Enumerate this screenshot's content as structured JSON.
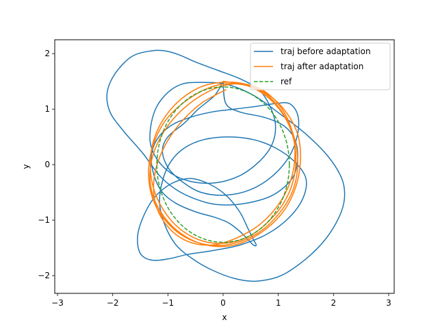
{
  "chart_data": {
    "type": "line",
    "xlabel": "x",
    "ylabel": "y",
    "xlim": [
      -3.05,
      3.1
    ],
    "ylim": [
      -2.32,
      2.25
    ],
    "xticks": [
      -3,
      -2,
      -1,
      0,
      1,
      2,
      3
    ],
    "yticks": [
      -2,
      -1,
      0,
      1,
      2
    ],
    "xtick_labels": [
      "−3",
      "−2",
      "−1",
      "0",
      "1",
      "2",
      "3"
    ],
    "ytick_labels": [
      "−2",
      "−1",
      "0",
      "1",
      "2"
    ],
    "grid": false,
    "legend": {
      "placement": "top-right",
      "entries": [
        {
          "label": "traj before adaptation",
          "color": "#1f77b4",
          "style": "solid"
        },
        {
          "label": "traj after adaptation",
          "color": "#ff7f0e",
          "style": "solid"
        },
        {
          "label": "ref",
          "color": "#2ca02c",
          "style": "dashed"
        }
      ]
    },
    "series": [
      {
        "name": "traj before adaptation",
        "color": "#1f77b4",
        "style": "solid",
        "x": [
          0.0,
          0.05,
          0.3,
          0.75,
          1.1,
          1.3,
          1.35,
          1.25,
          0.9,
          0.4,
          -0.1,
          -0.5,
          -0.85,
          -1.15,
          -1.45,
          -1.8,
          -2.05,
          -2.1,
          -1.95,
          -1.65,
          -1.3,
          -1.05,
          -0.8,
          -0.5,
          -0.1,
          0.3,
          0.65,
          0.85,
          0.95,
          0.88,
          0.65,
          0.3,
          -0.15,
          -0.6,
          -0.95,
          -1.2,
          -1.32,
          -1.3,
          -1.2,
          -1.0,
          -0.75,
          -0.45,
          0.05,
          0.55,
          1.05,
          1.5,
          1.9,
          2.15,
          2.2,
          2.1,
          1.85,
          1.5,
          1.05,
          0.6,
          0.2,
          -0.2,
          -0.55,
          -0.85,
          -1.05,
          -1.15,
          -1.1,
          -0.95,
          -0.7,
          -0.35,
          0.1,
          0.55,
          0.95,
          1.3,
          1.5,
          1.45,
          1.2,
          0.8,
          0.3,
          -0.2,
          -0.65,
          -1.0,
          -1.3,
          -1.5,
          -1.55,
          -1.45,
          -1.25,
          -0.95,
          -0.6,
          -0.25,
          0.05,
          0.3,
          0.45,
          0.55,
          0.6,
          0.55,
          0.45,
          0.3,
          0.1,
          -0.15,
          -0.5,
          -0.85,
          -1.1,
          -1.25,
          -1.3,
          -1.2,
          -0.95,
          -0.6,
          -0.2,
          0.2,
          0.6,
          0.95,
          1.2,
          1.35,
          1.35,
          1.2,
          0.9,
          0.5,
          0.05,
          -0.4,
          -0.75,
          -1.0,
          -1.1,
          -1.0,
          -0.7,
          -0.45,
          -0.15,
          0.0
        ],
        "y": [
          1.5,
          1.1,
          0.95,
          0.85,
          0.7,
          0.45,
          0.1,
          -0.25,
          -0.55,
          -0.7,
          -0.72,
          -0.62,
          -0.45,
          -0.2,
          0.2,
          0.6,
          0.95,
          1.3,
          1.65,
          1.95,
          2.05,
          2.05,
          1.98,
          1.85,
          1.7,
          1.55,
          1.35,
          1.05,
          0.7,
          0.35,
          0.05,
          -0.2,
          -0.33,
          -0.3,
          -0.15,
          0.1,
          0.4,
          0.75,
          1.05,
          1.3,
          1.45,
          1.48,
          1.45,
          1.25,
          0.9,
          0.55,
          0.15,
          -0.25,
          -0.6,
          -0.95,
          -1.35,
          -1.7,
          -2.0,
          -2.1,
          -2.05,
          -1.9,
          -1.7,
          -1.45,
          -1.1,
          -0.7,
          -0.3,
          0.05,
          0.3,
          0.45,
          0.5,
          0.45,
          0.3,
          0.05,
          -0.25,
          -0.6,
          -0.95,
          -1.25,
          -1.45,
          -1.55,
          -1.62,
          -1.7,
          -1.72,
          -1.6,
          -1.3,
          -0.95,
          -0.6,
          -0.35,
          -0.25,
          -0.35,
          -0.55,
          -0.85,
          -1.15,
          -1.35,
          -1.45,
          -1.45,
          -1.35,
          -1.2,
          -1.05,
          -0.95,
          -0.85,
          -0.7,
          -0.5,
          -0.2,
          0.15,
          0.45,
          0.7,
          0.85,
          0.95,
          1.0,
          1.05,
          1.1,
          1.1,
          0.9,
          0.55,
          0.15,
          -0.2,
          -0.45,
          -0.55,
          -0.5,
          -0.3,
          -0.05,
          0.25,
          0.5,
          0.75,
          1.0,
          1.25,
          1.5
        ]
      },
      {
        "name": "traj after adaptation",
        "color": "#ff7f0e",
        "style": "solid",
        "x": [
          0.0,
          0.45,
          0.85,
          1.15,
          1.3,
          1.3,
          1.15,
          0.85,
          0.45,
          0.0,
          -0.45,
          -0.85,
          -1.15,
          -1.3,
          -1.3,
          -1.15,
          -0.85,
          -0.45,
          -0.05,
          0.4,
          0.8,
          1.1,
          1.3,
          1.35,
          1.25,
          1.0,
          0.65,
          0.2,
          -0.25,
          -0.7,
          -1.05,
          -1.28,
          -1.35,
          -1.25,
          -1.0,
          -0.6,
          -0.15,
          0.3,
          0.75,
          1.1,
          1.35,
          1.4,
          1.3,
          1.05,
          0.65,
          0.2,
          -0.3,
          -0.75,
          -1.1,
          -1.3,
          -1.3,
          -1.1,
          -0.75,
          -0.3,
          0.15,
          0.6,
          0.95,
          1.2,
          1.3,
          1.25,
          1.05,
          0.7,
          0.25,
          -0.2,
          -0.65,
          -1.0,
          -1.22,
          -1.25,
          -1.1,
          -0.8,
          -0.4,
          0.05
        ],
        "y": [
          1.5,
          1.42,
          1.18,
          0.8,
          0.35,
          -0.15,
          -0.6,
          -1.0,
          -1.3,
          -1.42,
          -1.35,
          -1.1,
          -0.7,
          -0.25,
          0.25,
          0.7,
          1.1,
          1.38,
          1.48,
          1.45,
          1.25,
          0.9,
          0.45,
          -0.05,
          -0.5,
          -0.9,
          -1.22,
          -1.42,
          -1.45,
          -1.3,
          -1.0,
          -0.6,
          -0.1,
          0.4,
          0.85,
          1.2,
          1.42,
          1.45,
          1.3,
          1.0,
          0.55,
          0.05,
          -0.45,
          -0.9,
          -1.25,
          -1.45,
          -1.45,
          -1.25,
          -0.9,
          -0.45,
          0.05,
          0.55,
          0.98,
          1.3,
          1.45,
          1.4,
          1.15,
          0.75,
          0.3,
          -0.2,
          -0.65,
          -1.05,
          -1.32,
          -1.45,
          -1.38,
          -1.12,
          -0.72,
          -0.25,
          0.25,
          0.72,
          1.1,
          1.35
        ]
      },
      {
        "name": "ref",
        "color": "#2ca02c",
        "style": "dashed",
        "shape": "ellipse",
        "center": [
          0,
          0
        ],
        "radii": [
          1.2,
          1.4
        ]
      }
    ]
  }
}
